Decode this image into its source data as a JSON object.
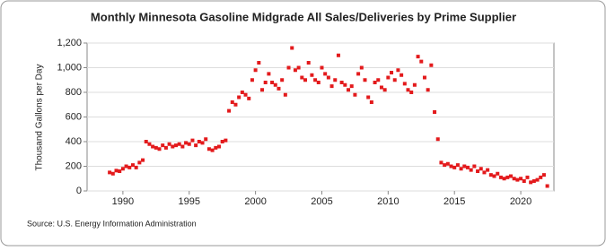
{
  "chart_data": {
    "type": "scatter",
    "title": "Monthly Minnesota Gasoline Midgrade All Sales/Deliveries by Prime Supplier",
    "y_label": "Thousand Gallons per Day",
    "source": "Source: U.S. Energy Information Administration",
    "color": "#e31a1c",
    "grid": true,
    "xlim": [
      1987.3,
      2022.5
    ],
    "xticks": [
      1990,
      1995,
      2000,
      2005,
      2010,
      2015,
      2020
    ],
    "ylim": [
      0,
      1200
    ],
    "yticks": [
      0,
      200,
      400,
      600,
      800,
      {
        "value": 1000,
        "label": "1,000"
      },
      {
        "value": 1200,
        "label": "1,200"
      }
    ],
    "series": [
      {
        "name": "Midgrade",
        "color": "#e31a1c",
        "x": [
          1989,
          1989.25,
          1989.5,
          1989.75,
          1990,
          1990.25,
          1990.5,
          1990.75,
          1991,
          1991.25,
          1991.5,
          1991.75,
          1992,
          1992.25,
          1992.5,
          1992.75,
          1993,
          1993.25,
          1993.5,
          1993.75,
          1994,
          1994.25,
          1994.5,
          1994.75,
          1995,
          1995.25,
          1995.5,
          1995.75,
          1996,
          1996.25,
          1996.5,
          1996.75,
          1997,
          1997.25,
          1997.5,
          1997.75,
          1998,
          1998.25,
          1998.5,
          1998.75,
          1999,
          1999.25,
          1999.5,
          1999.75,
          2000,
          2000.25,
          2000.5,
          2000.75,
          2001,
          2001.25,
          2001.5,
          2001.75,
          2002,
          2002.25,
          2002.5,
          2002.75,
          2003,
          2003.25,
          2003.5,
          2003.75,
          2004,
          2004.25,
          2004.5,
          2004.75,
          2005,
          2005.25,
          2005.5,
          2005.75,
          2006,
          2006.25,
          2006.5,
          2006.75,
          2007,
          2007.25,
          2007.5,
          2007.75,
          2008,
          2008.25,
          2008.5,
          2008.75,
          2009,
          2009.25,
          2009.5,
          2009.75,
          2010,
          2010.25,
          2010.5,
          2010.75,
          2011,
          2011.25,
          2011.5,
          2011.75,
          2012,
          2012.25,
          2012.5,
          2012.75,
          2013,
          2013.25,
          2013.5,
          2013.75,
          2014,
          2014.25,
          2014.5,
          2014.75,
          2015,
          2015.25,
          2015.5,
          2015.75,
          2016,
          2016.25,
          2016.5,
          2016.75,
          2017,
          2017.25,
          2017.5,
          2017.75,
          2018,
          2018.25,
          2018.5,
          2018.75,
          2019,
          2019.25,
          2019.5,
          2019.75,
          2020,
          2020.25,
          2020.5,
          2020.75,
          2021,
          2021.25,
          2021.5,
          2021.75,
          2022
        ],
        "values": [
          150,
          140,
          165,
          160,
          180,
          200,
          190,
          210,
          190,
          230,
          250,
          400,
          380,
          360,
          350,
          340,
          370,
          350,
          380,
          360,
          370,
          380,
          360,
          390,
          380,
          410,
          370,
          400,
          390,
          420,
          340,
          330,
          350,
          360,
          400,
          410,
          650,
          720,
          700,
          760,
          800,
          780,
          750,
          900,
          980,
          1040,
          820,
          880,
          950,
          880,
          860,
          830,
          900,
          780,
          1000,
          1160,
          980,
          1000,
          920,
          900,
          1040,
          940,
          900,
          880,
          1000,
          950,
          920,
          850,
          900,
          1100,
          880,
          860,
          820,
          850,
          780,
          950,
          1000,
          900,
          760,
          720,
          880,
          900,
          840,
          820,
          920,
          960,
          900,
          980,
          940,
          870,
          820,
          800,
          860,
          1090,
          1050,
          920,
          820,
          1020,
          640,
          420,
          230,
          210,
          220,
          200,
          190,
          210,
          180,
          200,
          190,
          170,
          200,
          160,
          180,
          150,
          170,
          130,
          120,
          140,
          110,
          100,
          110,
          120,
          100,
          90,
          100,
          80,
          110,
          70,
          80,
          90,
          110,
          130,
          40
        ]
      }
    ]
  }
}
